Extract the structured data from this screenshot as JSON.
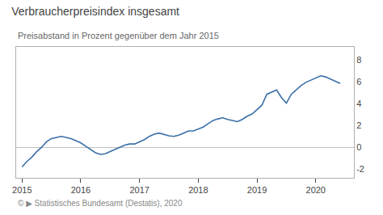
{
  "chart_data": {
    "type": "line",
    "title": "Verbraucherpreisindex insgesamt",
    "subtitle": "Preisabstand in Prozent gegenüber dem Jahr 2015",
    "footer": "© ▶ Statistisches Bundesamt (Destatis), 2020",
    "color": "#3a6fa8",
    "x": [
      2015,
      2015.0833333333333,
      2015.1666666666667,
      2015.25,
      2015.3333333333333,
      2015.4166666666667,
      2015.5,
      2015.5833333333333,
      2015.6666666666667,
      2015.75,
      2015.8333333333333,
      2015.9166666666667,
      2016,
      2016.0833333333333,
      2016.1666666666667,
      2016.25,
      2016.3333333333333,
      2016.4166666666667,
      2016.5,
      2016.5833333333333,
      2016.6666666666667,
      2016.75,
      2016.8333333333333,
      2016.9166666666667,
      2017,
      2017.0833333333333,
      2017.1666666666667,
      2017.25,
      2017.3333333333333,
      2017.4166666666667,
      2017.5,
      2017.5833333333333,
      2017.6666666666667,
      2017.75,
      2017.8333333333333,
      2017.9166666666667,
      2018,
      2018.0833333333333,
      2018.1666666666667,
      2018.25,
      2018.3333333333333,
      2018.4166666666667,
      2018.5,
      2018.5833333333333,
      2018.6666666666667,
      2018.75,
      2018.8333333333333,
      2018.9166666666667,
      2019,
      2019.0833333333333,
      2019.1666666666667,
      2019.25,
      2019.3333333333333,
      2019.4166666666667,
      2019.5,
      2019.5833333333333,
      2019.6666666666667,
      2019.75,
      2019.8333333333333,
      2019.9166666666667,
      2020,
      2020.0833333333333,
      2020.1666666666667,
      2020.25,
      2020.3333333333333,
      2020.4166666666667
    ],
    "values": [
      -1.8,
      -1.3,
      -0.9,
      -0.4,
      0.0,
      0.5,
      0.8,
      0.9,
      1.0,
      0.9,
      0.8,
      0.6,
      0.4,
      0.1,
      -0.2,
      -0.5,
      -0.65,
      -0.6,
      -0.4,
      -0.2,
      0.0,
      0.2,
      0.3,
      0.3,
      0.5,
      0.7,
      1.0,
      1.2,
      1.3,
      1.15,
      1.05,
      1.0,
      1.1,
      1.3,
      1.5,
      1.5,
      1.65,
      1.85,
      2.15,
      2.45,
      2.6,
      2.7,
      2.55,
      2.45,
      2.35,
      2.55,
      2.85,
      3.05,
      3.45,
      3.85,
      4.85,
      5.05,
      5.25,
      4.55,
      4.05,
      4.85,
      5.25,
      5.65,
      5.95,
      6.15,
      6.35,
      6.55,
      6.45,
      6.25,
      6.05,
      5.85
    ],
    "xlim": [
      2014.9,
      2020.65
    ],
    "xticks": [
      2015,
      2016,
      2017,
      2018,
      2019,
      2020
    ],
    "ylim": [
      -2.8,
      9.2
    ],
    "yticks": [
      -2,
      0,
      2,
      4,
      6,
      8
    ],
    "grid": false
  }
}
